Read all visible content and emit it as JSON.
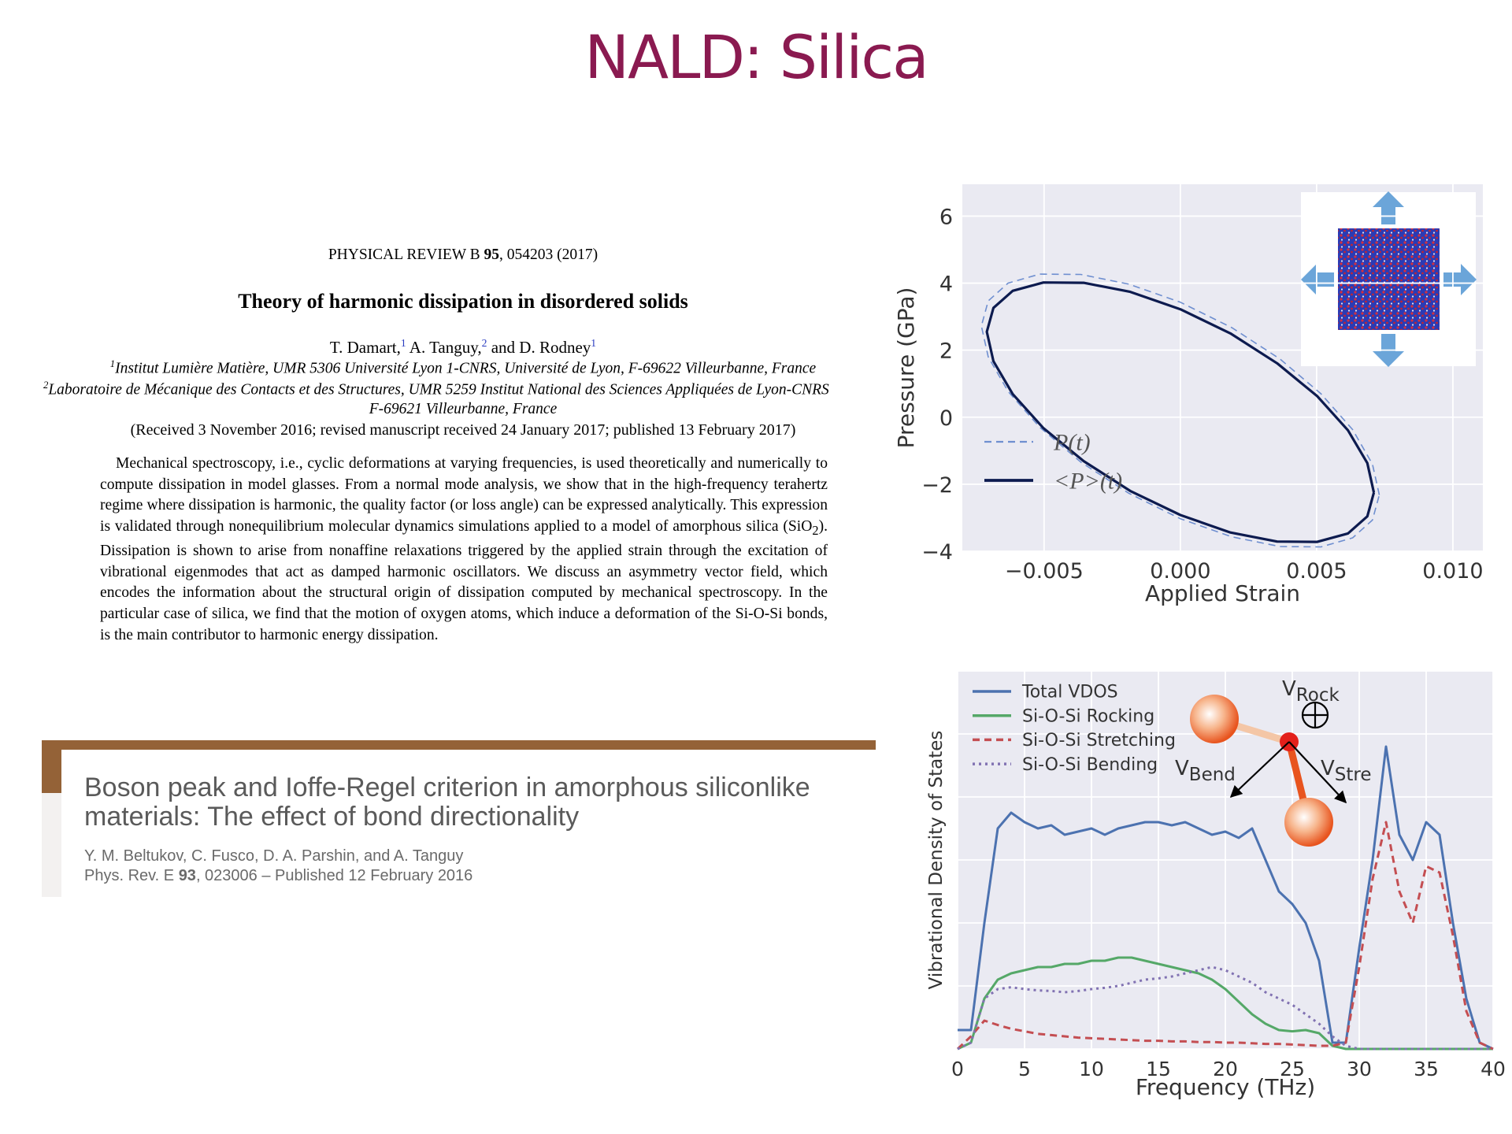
{
  "slide_title": "NALD: Silica",
  "paper1": {
    "journal": "PHYSICAL REVIEW B",
    "volume": "95",
    "citation": ", 054203 (2017)",
    "title": "Theory of harmonic dissipation in disordered solids",
    "authors": [
      {
        "name": "T. Damart,",
        "aff": "1"
      },
      {
        "name": "A. Tanguy,",
        "aff": "2"
      },
      {
        "name": "and D. Rodney",
        "aff": "1"
      }
    ],
    "affiliations": [
      {
        "mark": "1",
        "text": "Institut Lumière Matière, UMR 5306 Université Lyon 1-CNRS, Université de Lyon, F-69622 Villeurbanne, France"
      },
      {
        "mark": "2",
        "text": "Laboratoire de Mécanique des Contacts et des Structures, UMR 5259 Institut National des Sciences Appliquées de Lyon-CNRS"
      }
    ],
    "affiliation_cont": "F-69621 Villeurbanne, France",
    "received": "(Received 3 November 2016; revised manuscript received 24 January 2017; published 13 February 2017)",
    "abstract": [
      "Mechanical spectroscopy, i.e., cyclic deformations at varying frequencies, is used theoretically and numerically to compute dissipation in model glasses. From a normal mode analysis, we show that in the high-frequency terahertz regime where dissipation is harmonic, the quality factor (or loss angle) can be expressed analytically. This expression is validated through nonequilibrium molecular dynamics simulations applied to a model of amorphous silica (SiO",
      "2",
      "). Dissipation is shown to arise from nonaffine relaxations triggered by the applied strain through the excitation of vibrational eigenmodes that act as damped harmonic oscillators. We discuss an asymmetry vector field, which encodes the information about the structural origin of dissipation computed by mechanical spectroscopy. In the particular case of silica, we find that the motion of oxygen atoms, which induce a deformation of the Si-O-Si bonds, is the main contributor to harmonic energy dissipation."
    ]
  },
  "paper2": {
    "title": "Boson peak and Ioffe-Regel criterion in amorphous siliconlike materials: The effect of bond directionality",
    "authors": "Y. M. Beltukov, C. Fusco, D. A. Parshin, and A. Tanguy",
    "journal": "Phys. Rev. E",
    "volume": "93",
    "citation": ", 023006 – Published 12 February 2016"
  },
  "chart_data": [
    {
      "type": "line",
      "x_label": "Applied Strain",
      "y_label": "Pressure (GPa)",
      "xlim": [
        -0.008,
        0.0111
      ],
      "ylim": [
        -4,
        6.95
      ],
      "xticks": [
        {
          "value": -0.005,
          "label": "−0.005"
        },
        {
          "value": 0,
          "label": "0.000"
        },
        0.005,
        {
          "value": 0.01,
          "label": "0.010"
        }
      ],
      "yticks": [
        {
          "value": -4,
          "label": "−4"
        },
        {
          "value": -2,
          "label": "−2"
        },
        0,
        2,
        4,
        6
      ],
      "grid": true,
      "legend": "lower left",
      "series": [
        {
          "name": "P(t)",
          "color": "#6f8fd0",
          "dash": "dashed",
          "x": [
            0.0073,
            0.00705,
            0.00632,
            0.00516,
            0.00365,
            0.00189,
            0,
            -0.00189,
            -0.00365,
            -0.00516,
            -0.00632,
            -0.00705,
            -0.0073,
            -0.00705,
            -0.00632,
            -0.00516,
            -0.00365,
            -0.00189,
            0,
            0.00189,
            0.00365,
            0.00516,
            0.00632,
            0.00705,
            0.0073
          ],
          "values": [
            -2.32,
            -1.4,
            -0.37,
            0.7,
            1.74,
            2.67,
            3.43,
            3.97,
            4.26,
            4.27,
            4.0,
            3.47,
            2.72,
            1.8,
            0.77,
            -0.3,
            -1.34,
            -2.27,
            -3.03,
            -3.57,
            -3.86,
            -3.87,
            -3.6,
            -3.07,
            -2.32
          ]
        },
        {
          "name": "<P>(t)",
          "color": "#0d1b4f",
          "dash": "solid",
          "x": [
            0.0071,
            0.00686,
            0.00615,
            0.00502,
            0.00355,
            0.00184,
            0,
            -0.00184,
            -0.00355,
            -0.00502,
            -0.00615,
            -0.00686,
            -0.0071,
            -0.00686,
            -0.00615,
            -0.00502,
            -0.00355,
            -0.00184,
            0,
            0.00184,
            0.00355,
            0.00502,
            0.00615,
            0.00686,
            0.0071
          ],
          "values": [
            -2.25,
            -1.37,
            -0.39,
            0.63,
            1.61,
            2.5,
            3.22,
            3.74,
            4.01,
            4.02,
            3.77,
            3.26,
            2.55,
            1.67,
            0.69,
            -0.33,
            -1.31,
            -2.2,
            -2.92,
            -3.44,
            -3.71,
            -3.72,
            -3.47,
            -2.96,
            -2.25
          ]
        }
      ]
    },
    {
      "type": "line",
      "x_label": "Frequency (THz)",
      "y_label": "Vibrational Density of States",
      "xlim": [
        0,
        40
      ],
      "ylim": [
        0,
        6
      ],
      "xticks": [
        0,
        5,
        10,
        15,
        20,
        25,
        30,
        35,
        40
      ],
      "yticks": [
        0,
        1,
        2,
        3,
        4,
        5,
        6
      ],
      "ytick_labels": false,
      "grid": true,
      "legend": "upper left",
      "x": [
        0,
        1,
        2,
        3,
        4,
        5,
        6,
        7,
        8,
        9,
        10,
        11,
        12,
        13,
        14,
        15,
        16,
        17,
        18,
        19,
        20,
        21,
        22,
        23,
        24,
        25,
        26,
        27,
        28,
        29,
        30,
        31,
        32,
        33,
        34,
        35,
        36,
        37,
        38,
        39,
        40
      ],
      "series": [
        {
          "name": "Total VDOS",
          "color": "#4c72b0",
          "dash": "solid",
          "values": [
            0.3,
            0.3,
            2.0,
            3.5,
            3.75,
            3.6,
            3.5,
            3.55,
            3.4,
            3.45,
            3.5,
            3.4,
            3.5,
            3.55,
            3.6,
            3.6,
            3.55,
            3.6,
            3.5,
            3.4,
            3.45,
            3.35,
            3.5,
            3.0,
            2.5,
            2.3,
            2.0,
            1.4,
            0.1,
            0.1,
            1.6,
            3.0,
            4.8,
            3.4,
            3.0,
            3.6,
            3.4,
            2.0,
            0.8,
            0.1,
            0
          ]
        },
        {
          "name": "Si-O-Si Rocking",
          "color": "#55a868",
          "dash": "solid",
          "values": [
            0,
            0.1,
            0.8,
            1.1,
            1.2,
            1.25,
            1.3,
            1.3,
            1.35,
            1.35,
            1.4,
            1.4,
            1.45,
            1.45,
            1.4,
            1.35,
            1.3,
            1.25,
            1.2,
            1.1,
            0.95,
            0.75,
            0.55,
            0.4,
            0.3,
            0.28,
            0.3,
            0.25,
            0.05,
            0,
            0,
            0,
            0,
            0,
            0,
            0,
            0,
            0,
            0,
            0,
            0
          ]
        },
        {
          "name": "Si-O-Si Stretching",
          "color": "#c44e52",
          "dash": "dashed",
          "values": [
            0,
            0.2,
            0.45,
            0.38,
            0.32,
            0.28,
            0.24,
            0.22,
            0.2,
            0.18,
            0.17,
            0.16,
            0.15,
            0.14,
            0.13,
            0.13,
            0.12,
            0.12,
            0.11,
            0.11,
            0.1,
            0.1,
            0.09,
            0.08,
            0.08,
            0.07,
            0.06,
            0.05,
            0.05,
            0.1,
            1.3,
            2.7,
            3.6,
            2.5,
            2.0,
            2.9,
            2.8,
            1.8,
            0.6,
            0.1,
            0
          ]
        },
        {
          "name": "Si-O-Si Bending",
          "color": "#8172b2",
          "dash": "dotted",
          "values": [
            0,
            0.1,
            0.8,
            0.95,
            0.98,
            0.95,
            0.93,
            0.92,
            0.9,
            0.92,
            0.95,
            0.97,
            1.0,
            1.05,
            1.1,
            1.12,
            1.15,
            1.2,
            1.25,
            1.3,
            1.25,
            1.15,
            1.05,
            0.9,
            0.8,
            0.7,
            0.55,
            0.4,
            0.2,
            0.05,
            0,
            0,
            0,
            0,
            0,
            0,
            0,
            0,
            0,
            0,
            0
          ]
        }
      ],
      "annotations": [
        {
          "base": "V",
          "sub": "Rock"
        },
        {
          "base": "V",
          "sub": "Bend"
        },
        {
          "base": "V",
          "sub": "Stre"
        }
      ]
    }
  ]
}
